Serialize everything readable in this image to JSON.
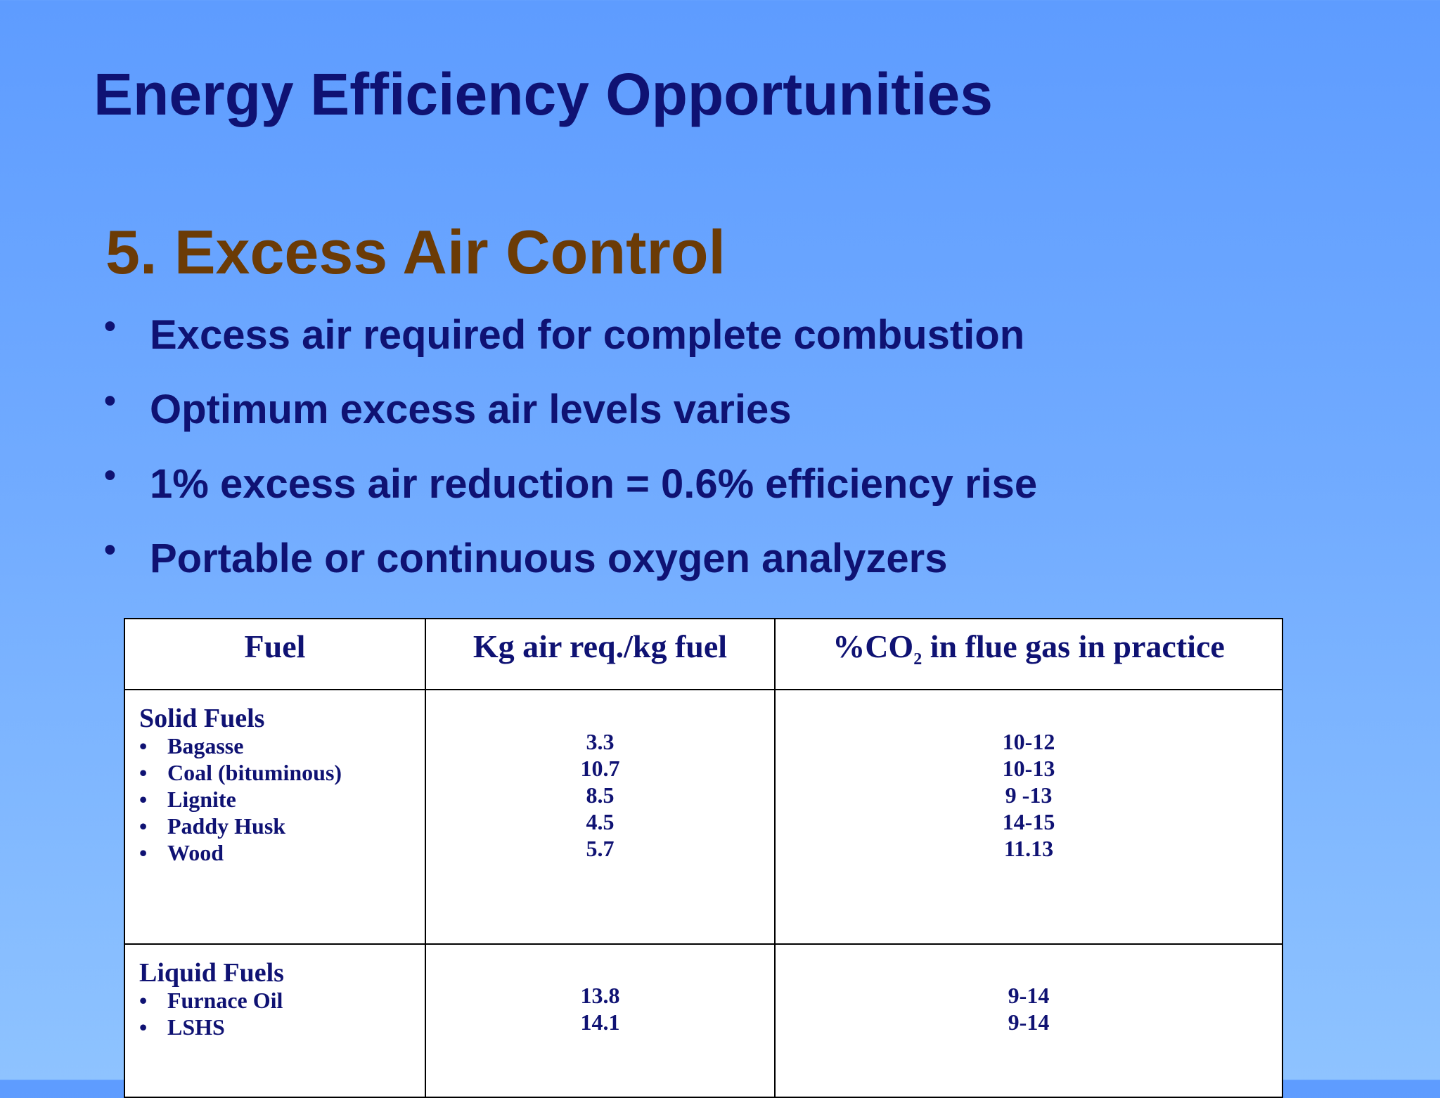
{
  "slide": {
    "title": "Energy Efficiency Opportunities",
    "subtitle": "5. Excess Air Control",
    "bullets": [
      "Excess air required for complete combustion",
      "Optimum excess air levels varies",
      "1% excess air reduction = 0.6% efficiency rise",
      "Portable or continuous oxygen analyzers"
    ],
    "bullet_glyph": "•"
  },
  "table": {
    "headers": {
      "fuel": "Fuel",
      "air": "Kg air req./kg fuel",
      "co2_prefix": "%CO",
      "co2_sub": "2",
      "co2_suffix": " in flue gas in practice"
    },
    "groups": [
      {
        "category": "Solid Fuels",
        "fuels": [
          "Bagasse",
          "Coal (bituminous)",
          "Lignite",
          "Paddy Husk",
          "Wood"
        ],
        "air": [
          "3.3",
          "10.7",
          "8.5",
          "4.5",
          "5.7"
        ],
        "co2": [
          "10-12",
          "10-13",
          "9 -13",
          "14-15",
          "11.13"
        ]
      },
      {
        "category": "Liquid Fuels",
        "fuels": [
          "Furnace Oil",
          "LSHS"
        ],
        "air": [
          "13.8",
          "14.1"
        ],
        "co2": [
          "9-14",
          "9-14"
        ]
      }
    ]
  }
}
